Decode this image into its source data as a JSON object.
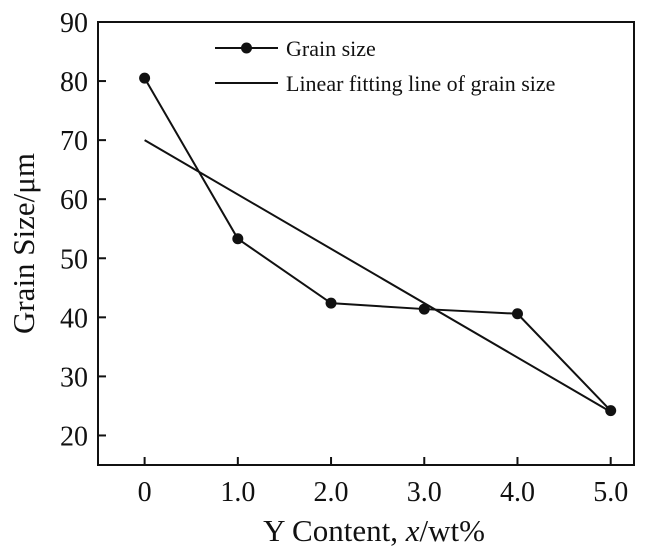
{
  "chart_data": {
    "type": "line",
    "title": "",
    "xlabel_parts": [
      {
        "text": "Y Content, ",
        "italic": false
      },
      {
        "text": "x",
        "italic": true
      },
      {
        "text": "/wt%",
        "italic": false
      }
    ],
    "ylabel": "Grain Size/μm",
    "xlim": [
      -0.5,
      5.25
    ],
    "ylim": [
      15,
      90
    ],
    "x_ticks": [
      0,
      1,
      2,
      3,
      4,
      5
    ],
    "x_tick_labels": [
      "0",
      "1.0",
      "2.0",
      "3.0",
      "4.0",
      "5.0"
    ],
    "y_ticks": [
      20,
      30,
      40,
      50,
      60,
      70,
      80,
      90
    ],
    "y_tick_labels": [
      "20",
      "30",
      "40",
      "50",
      "60",
      "70",
      "80",
      "90"
    ],
    "grid": false,
    "legend_position": "top-right",
    "series": [
      {
        "name": "Grain size",
        "style": "line-with-circle-markers",
        "x": [
          0,
          1,
          2,
          3,
          4,
          5
        ],
        "y": [
          80.5,
          53.3,
          42.4,
          41.4,
          40.6,
          24.2
        ]
      },
      {
        "name": "Linear fitting line of grain size",
        "style": "line",
        "x": [
          0,
          5
        ],
        "y": [
          70.0,
          24.0
        ]
      }
    ],
    "colors": {
      "line": "#111111",
      "axis": "#111111"
    }
  }
}
